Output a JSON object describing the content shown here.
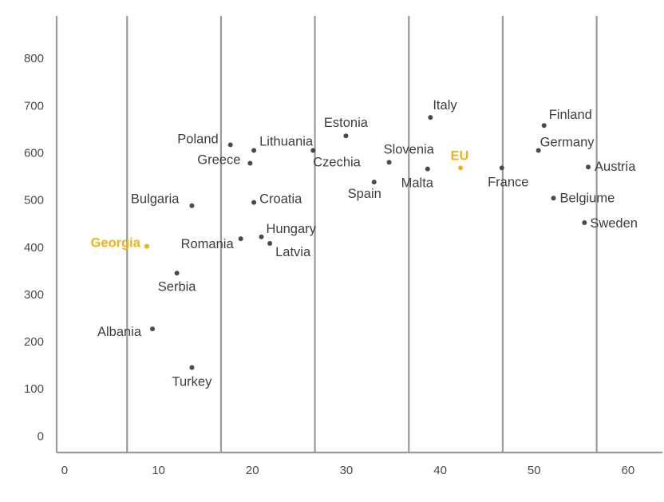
{
  "chart_data": {
    "type": "scatter",
    "title": "",
    "xlabel": "",
    "ylabel": "",
    "xlim": [
      -0.5,
      64
    ],
    "ylim": [
      -35,
      890
    ],
    "x_ticks": [
      0,
      10,
      20,
      30,
      40,
      50,
      60
    ],
    "y_ticks": [
      0,
      100,
      200,
      300,
      400,
      500,
      600,
      700,
      800
    ],
    "x_gridlines": [
      7,
      17,
      27,
      37,
      47,
      57
    ],
    "grid": "vertical",
    "legend": "none",
    "colors": {
      "default": "#4a4a4a",
      "highlight": "#f0b21a",
      "grid": "#9a9a9a"
    },
    "points": [
      {
        "label": "Georgia",
        "x": 9.1,
        "y": 402,
        "highlight": true
      },
      {
        "label": "EU",
        "x": 42.5,
        "y": 568,
        "highlight": true
      },
      {
        "label": "Albania",
        "x": 9.7,
        "y": 227
      },
      {
        "label": "Turkey",
        "x": 13.9,
        "y": 145
      },
      {
        "label": "Serbia",
        "x": 12.3,
        "y": 345
      },
      {
        "label": "Bulgaria",
        "x": 13.9,
        "y": 488
      },
      {
        "label": "Romania",
        "x": 19.1,
        "y": 418
      },
      {
        "label": "Poland",
        "x": 18.0,
        "y": 617
      },
      {
        "label": "Greece",
        "x": 20.1,
        "y": 578
      },
      {
        "label": "Lithuania",
        "x": 20.5,
        "y": 605
      },
      {
        "label": "Croatia",
        "x": 20.5,
        "y": 495
      },
      {
        "label": "Hungary",
        "x": 21.3,
        "y": 422
      },
      {
        "label": "Latvia",
        "x": 22.2,
        "y": 408
      },
      {
        "label": "Czechia",
        "x": 26.8,
        "y": 605
      },
      {
        "label": "Estonia",
        "x": 30.3,
        "y": 636
      },
      {
        "label": "Spain",
        "x": 33.3,
        "y": 538
      },
      {
        "label": "Slovenia",
        "x": 34.9,
        "y": 580
      },
      {
        "label": "Italy",
        "x": 39.3,
        "y": 675
      },
      {
        "label": "Malta",
        "x": 39.0,
        "y": 566
      },
      {
        "label": "France",
        "x": 46.9,
        "y": 568
      },
      {
        "label": "Finland",
        "x": 51.4,
        "y": 658
      },
      {
        "label": "Germany",
        "x": 50.8,
        "y": 605
      },
      {
        "label": "Austria",
        "x": 56.1,
        "y": 570
      },
      {
        "label": "Belgiume",
        "x": 52.4,
        "y": 504
      },
      {
        "label": "Sweden",
        "x": 55.7,
        "y": 452
      }
    ]
  }
}
